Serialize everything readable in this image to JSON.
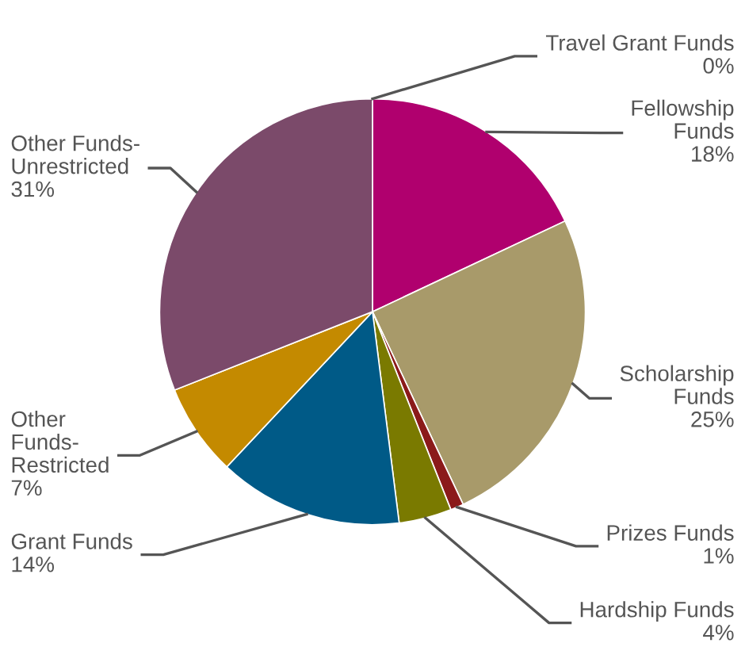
{
  "chart_data": {
    "type": "pie",
    "categories": [
      "Travel Grant Funds",
      "Fellowship\nFunds",
      "Scholarship\nFunds",
      "Prizes Funds",
      "Hardship Funds",
      "Grant Funds",
      "Other\nFunds-\nRestricted",
      "Other Funds-\nUnrestricted"
    ],
    "values": [
      0,
      18,
      25,
      1,
      4,
      14,
      7,
      31
    ],
    "value_labels": [
      "0%",
      "18%",
      "25%",
      "1%",
      "4%",
      "14%",
      "7%",
      "31%"
    ],
    "colors": [
      "#8a8a8a",
      "#b0006e",
      "#a89a6a",
      "#8b1a1a",
      "#7a7a00",
      "#005a87",
      "#c48a00",
      "#7b4a6a"
    ]
  }
}
